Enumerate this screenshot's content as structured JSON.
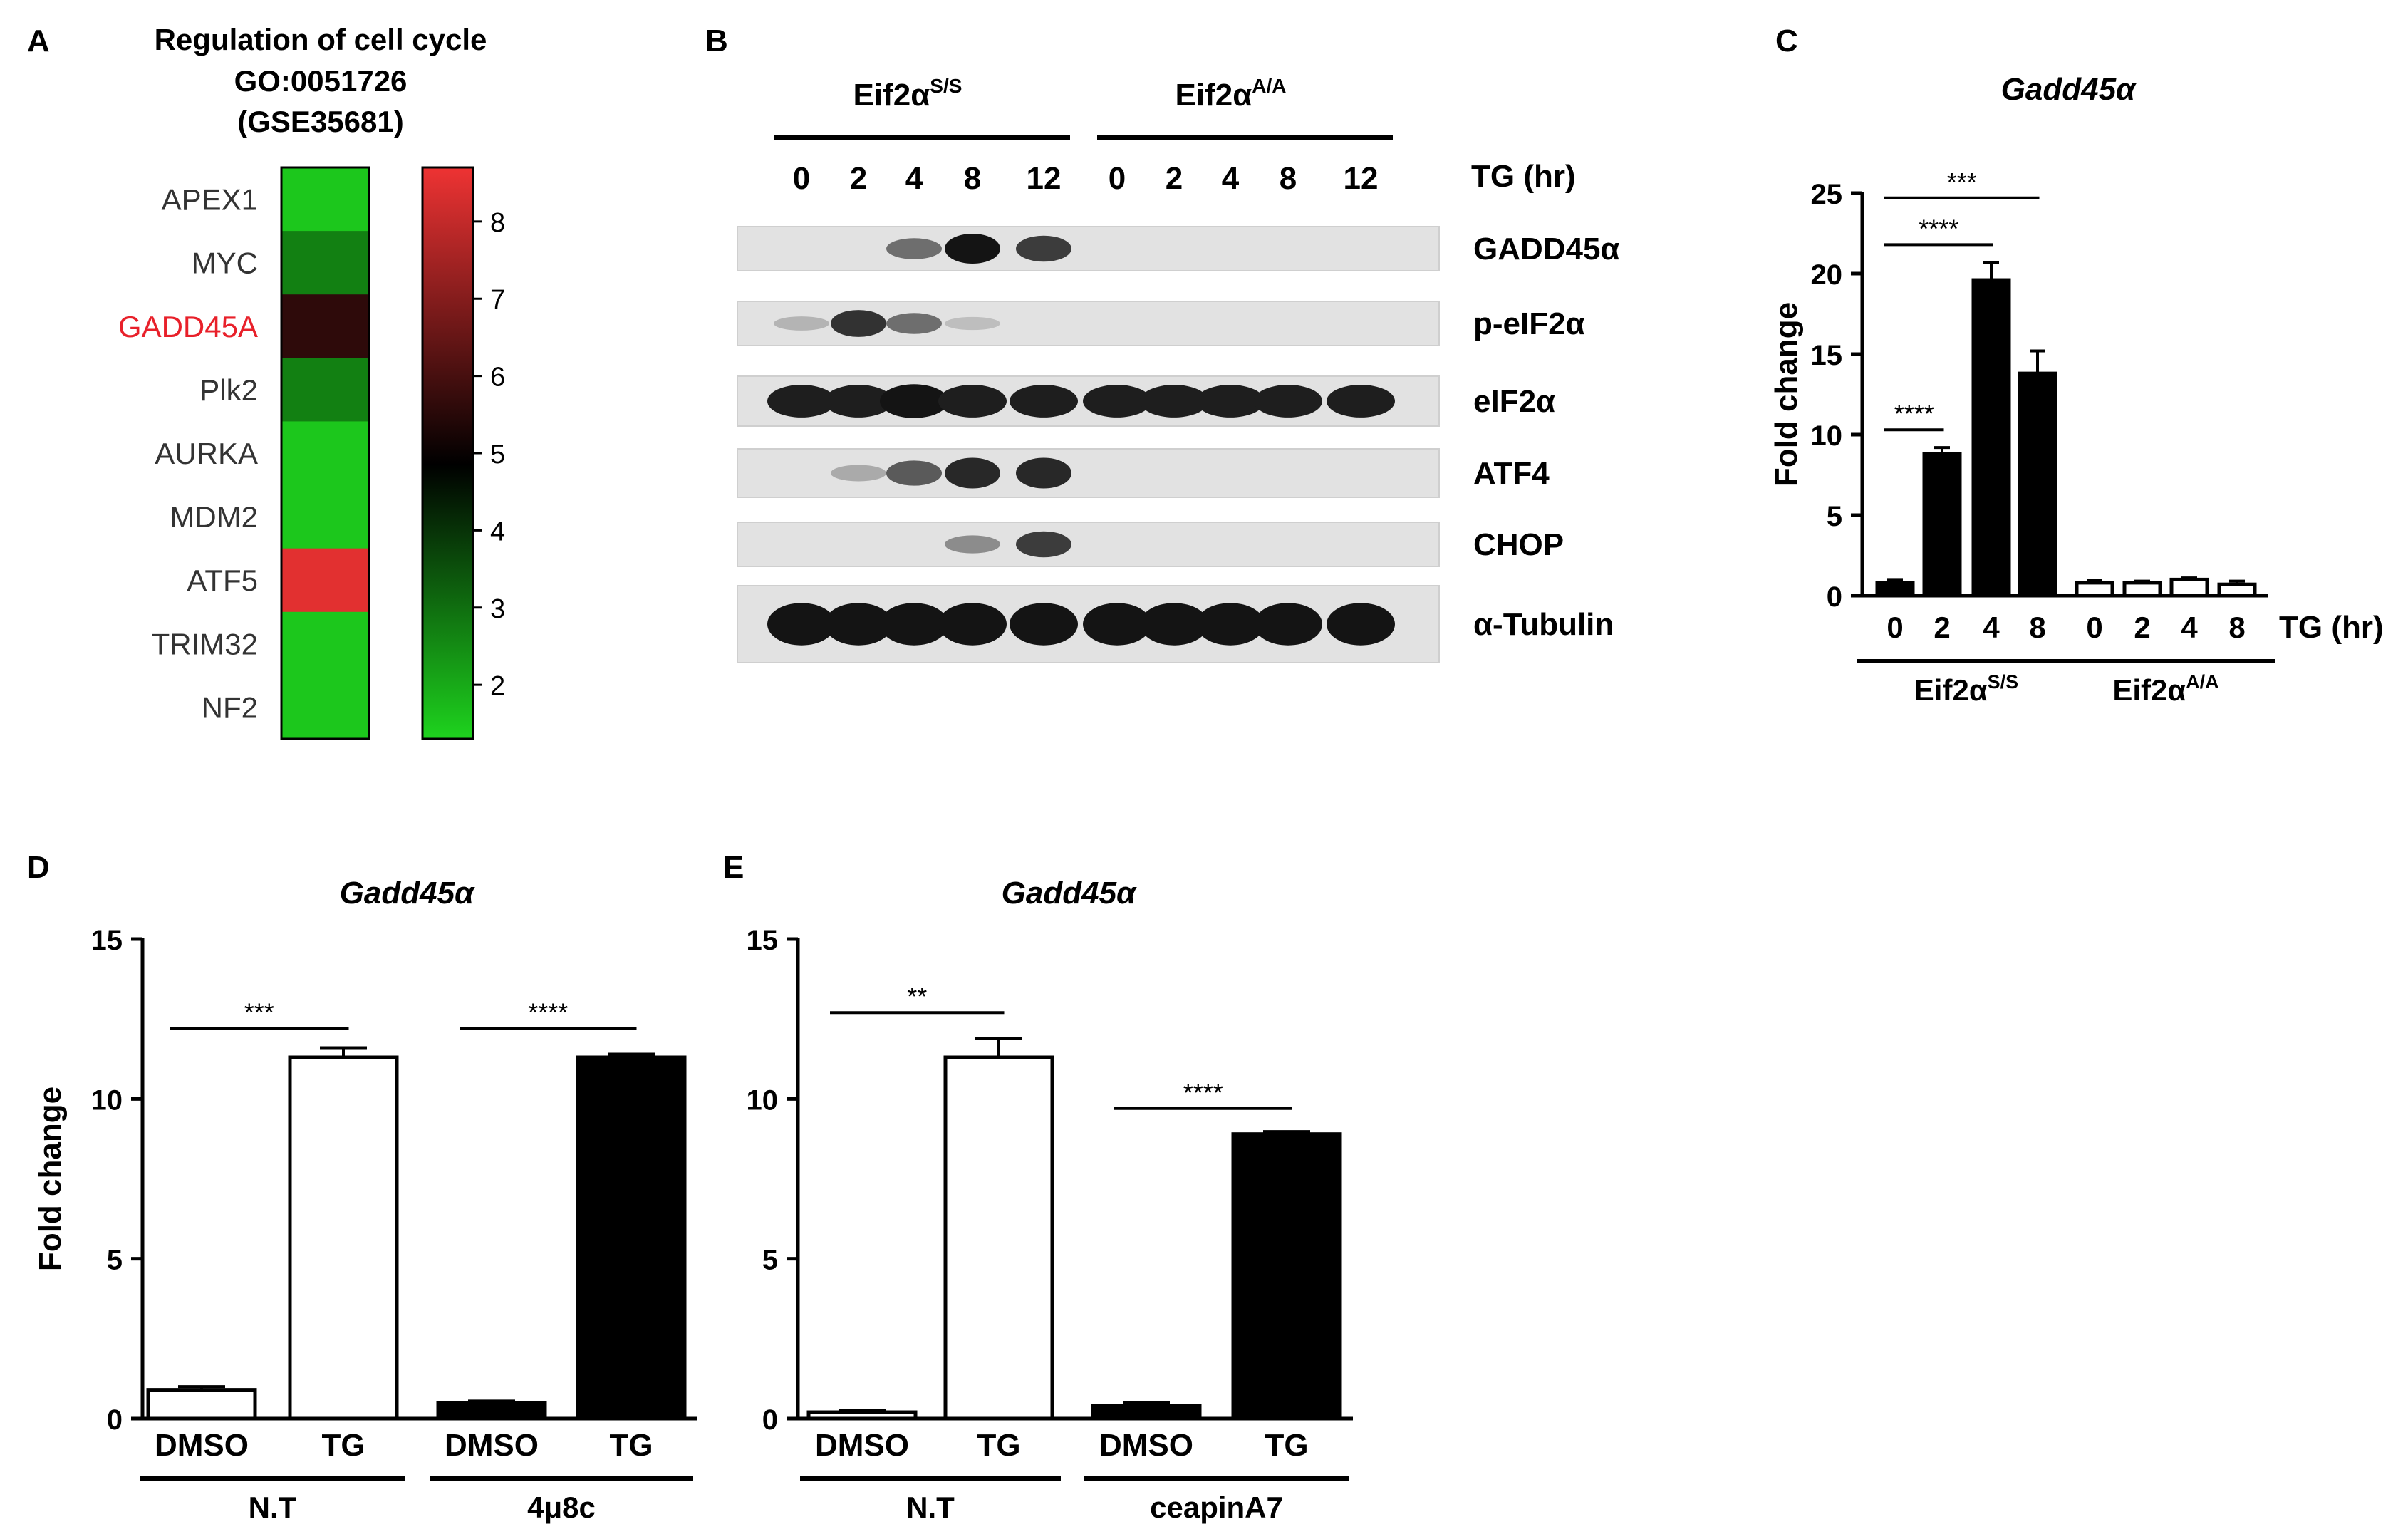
{
  "panels": {
    "A": {
      "letter": "A",
      "title_lines": [
        "Regulation of cell cycle",
        "GO:0051726",
        "(GSE35681)"
      ],
      "chart_data": {
        "type": "heatmap",
        "rows": [
          "APEX1",
          "MYC",
          "GADD45A",
          "Plk2",
          "AURKA",
          "MDM2",
          "ATF5",
          "TRIM32",
          "NF2"
        ],
        "values": [
          1.5,
          2.7,
          5.6,
          2.7,
          1.5,
          1.5,
          8.5,
          1.5,
          1.5
        ],
        "highlight_row": "GADD45A",
        "highlight_color": "#e8202a",
        "colorbar": {
          "ticks": [
            8,
            7,
            6,
            5,
            4,
            3,
            2
          ],
          "range": [
            1.3,
            8.7
          ]
        },
        "colors": {
          "low": "#1ed31e",
          "mid": "#000000",
          "high": "#ee3333"
        }
      }
    },
    "B": {
      "letter": "B",
      "groups": [
        {
          "label": "Eif2α",
          "sup": "S/S",
          "lanes": [
            "0",
            "2",
            "4",
            "8",
            "12"
          ]
        },
        {
          "label": "Eif2α",
          "sup": "A/A",
          "lanes": [
            "0",
            "2",
            "4",
            "8",
            "12"
          ]
        }
      ],
      "time_label": "TG (hr)",
      "bands": [
        {
          "name": "GADD45α",
          "intensity": [
            0,
            0,
            0.5,
            0.95,
            0.75,
            0,
            0,
            0,
            0,
            0
          ]
        },
        {
          "name": "p-eIF2α",
          "intensity": [
            0.15,
            0.8,
            0.5,
            0.1,
            0,
            0,
            0,
            0,
            0,
            0
          ]
        },
        {
          "name": "eIF2α",
          "intensity": [
            0.9,
            0.9,
            0.95,
            0.9,
            0.9,
            0.9,
            0.9,
            0.9,
            0.9,
            0.9
          ]
        },
        {
          "name": "ATF4",
          "intensity": [
            0,
            0.2,
            0.6,
            0.85,
            0.85,
            0,
            0,
            0,
            0,
            0
          ]
        },
        {
          "name": "CHOP",
          "intensity": [
            0,
            0,
            0,
            0.35,
            0.75,
            0,
            0,
            0,
            0,
            0
          ]
        },
        {
          "name": "α-Tubulin",
          "intensity": [
            0.95,
            0.95,
            0.95,
            0.95,
            0.95,
            0.95,
            0.95,
            0.95,
            0.95,
            0.95
          ]
        }
      ]
    },
    "C": {
      "letter": "C",
      "chart_data": {
        "type": "bar",
        "title": "Gadd45α",
        "ylabel": "Fold change",
        "ylim": [
          0,
          25
        ],
        "yticks": [
          0,
          5,
          10,
          15,
          20,
          25
        ],
        "x_axis_label": "TG (hr)",
        "categories": [
          "0",
          "2",
          "4",
          "8",
          "0",
          "2",
          "4",
          "8"
        ],
        "values": [
          0.8,
          8.8,
          19.6,
          13.8,
          0.8,
          0.8,
          1.0,
          0.7
        ],
        "errors": [
          0.2,
          0.4,
          1.1,
          1.4,
          0.15,
          0.1,
          0.1,
          0.2
        ],
        "fills": [
          "black",
          "black",
          "black",
          "black",
          "white",
          "white",
          "white",
          "white"
        ],
        "groups": [
          {
            "label": "Eif2α",
            "sup": "S/S",
            "bars": [
              0,
              3
            ]
          },
          {
            "label": "Eif2α",
            "sup": "A/A",
            "bars": [
              4,
              7
            ]
          }
        ],
        "significance": [
          {
            "from": 0,
            "to": 1,
            "y": 10.3,
            "label": "****"
          },
          {
            "from": 0,
            "to": 2,
            "y": 21.8,
            "label": "****"
          },
          {
            "from": 0,
            "to": 3,
            "y": 24.7,
            "label": "***"
          }
        ]
      }
    },
    "D": {
      "letter": "D",
      "chart_data": {
        "type": "bar",
        "title": "Gadd45α",
        "ylabel": "Fold change",
        "ylim": [
          0,
          15
        ],
        "yticks": [
          0,
          5,
          10,
          15
        ],
        "categories": [
          "DMSO",
          "TG",
          "DMSO",
          "TG"
        ],
        "values": [
          0.9,
          11.3,
          0.5,
          11.3
        ],
        "errors": [
          0.1,
          0.3,
          0.05,
          0.1
        ],
        "fills": [
          "white",
          "white",
          "black",
          "black"
        ],
        "groups": [
          {
            "label": "N.T",
            "bars": [
              0,
              1
            ]
          },
          {
            "label": "4μ8c",
            "bars": [
              2,
              3
            ]
          }
        ],
        "significance": [
          {
            "from": 0,
            "to": 1,
            "y": 12.2,
            "label": "***"
          },
          {
            "from": 2,
            "to": 3,
            "y": 12.2,
            "label": "****"
          }
        ]
      }
    },
    "E": {
      "letter": "E",
      "chart_data": {
        "type": "bar",
        "title": "Gadd45α",
        "ylabel": "",
        "ylim": [
          0,
          15
        ],
        "yticks": [
          0,
          5,
          10,
          15
        ],
        "categories": [
          "DMSO",
          "TG",
          "DMSO",
          "TG"
        ],
        "values": [
          0.2,
          11.3,
          0.4,
          8.9
        ],
        "errors": [
          0.05,
          0.6,
          0.1,
          0.08
        ],
        "fills": [
          "white",
          "white",
          "black",
          "black"
        ],
        "groups": [
          {
            "label": "N.T",
            "bars": [
              0,
              1
            ]
          },
          {
            "label": "ceapinA7",
            "bars": [
              2,
              3
            ]
          }
        ],
        "significance": [
          {
            "from": 0,
            "to": 1,
            "y": 12.7,
            "label": "**"
          },
          {
            "from": 2,
            "to": 3,
            "y": 9.7,
            "label": "****"
          }
        ]
      }
    }
  }
}
